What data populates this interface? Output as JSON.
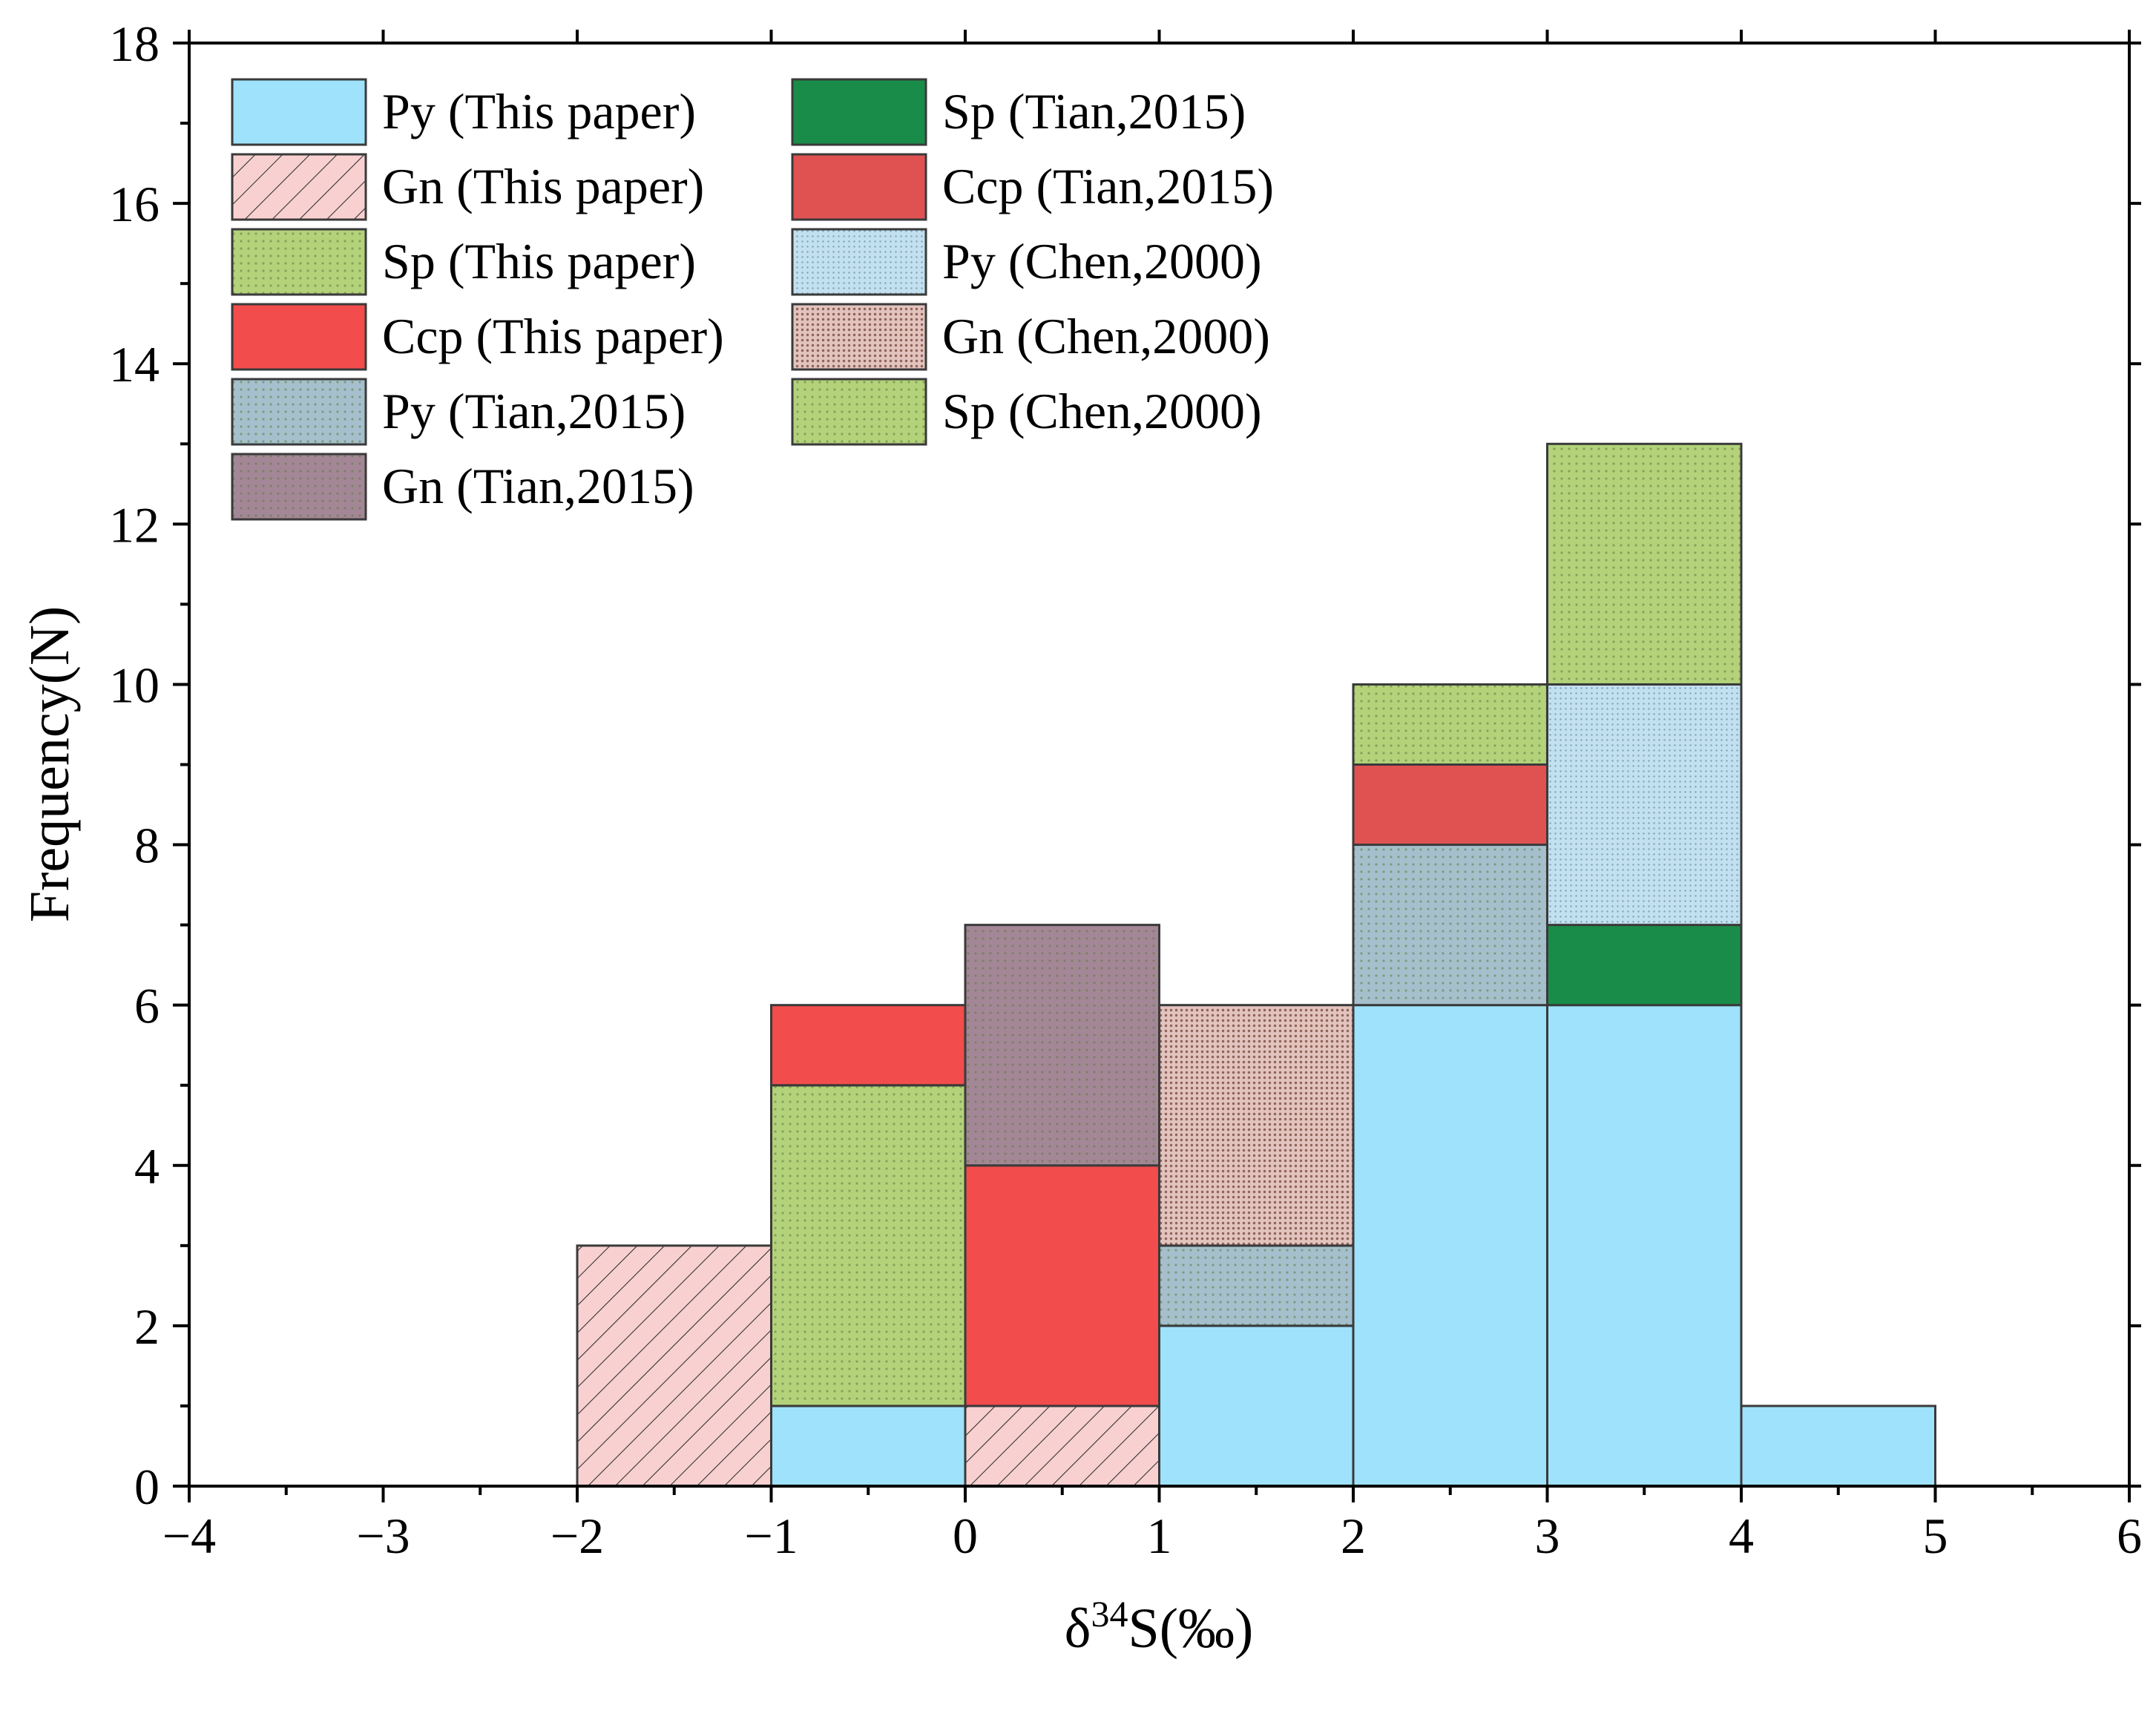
{
  "chart_data": {
    "type": "bar",
    "subtype": "stacked-histogram",
    "title": "",
    "xlabel": "δ34S(‰)",
    "xlabel_parts": {
      "base": "δ",
      "superscript": "34",
      "rest": "S(‰)"
    },
    "ylabel": "Frequency(N)",
    "xlim": [
      -4,
      6
    ],
    "ylim": [
      0,
      18
    ],
    "x_ticks": [
      "−4",
      "−3",
      "−2",
      "−1",
      "0",
      "1",
      "2",
      "3",
      "4",
      "5",
      "6"
    ],
    "y_ticks": [
      "0",
      "2",
      "4",
      "6",
      "8",
      "10",
      "12",
      "14",
      "16",
      "18"
    ],
    "grid": false,
    "legend_position": "top-left",
    "bins": [
      [
        -2,
        -1
      ],
      [
        -1,
        0
      ],
      [
        0,
        1
      ],
      [
        1,
        2
      ],
      [
        2,
        3
      ],
      [
        3,
        4
      ],
      [
        4,
        5
      ]
    ],
    "series": [
      {
        "name": "Py (This paper)",
        "color": "#9ee2fb",
        "pattern": "solid",
        "values": [
          0,
          1,
          0,
          2,
          6,
          6,
          1
        ]
      },
      {
        "name": "Gn (This paper)",
        "color": "#f9d0d0",
        "pattern": "hatch",
        "values": [
          3,
          0,
          1,
          0,
          0,
          0,
          0
        ]
      },
      {
        "name": "Sp (This paper)",
        "color": "#b3d27a",
        "pattern": "dots",
        "values": [
          0,
          4,
          0,
          0,
          0,
          0,
          0
        ]
      },
      {
        "name": "Ccp (This paper)",
        "color": "#f24c4c",
        "pattern": "solid",
        "values": [
          0,
          1,
          3,
          0,
          0,
          0,
          0
        ]
      },
      {
        "name": "Py (Tian,2015)",
        "color": "#a5c0cc",
        "pattern": "dots",
        "values": [
          0,
          0,
          0,
          1,
          2,
          0,
          0
        ]
      },
      {
        "name": "Gn (Tian,2015)",
        "color": "#a48796",
        "pattern": "dots",
        "values": [
          0,
          0,
          3,
          0,
          0,
          0,
          0
        ]
      },
      {
        "name": "Sp (Tian,2015)",
        "color": "#1a8c4a",
        "pattern": "solid",
        "values": [
          0,
          0,
          0,
          0,
          0,
          1,
          0
        ]
      },
      {
        "name": "Ccp (Tian,2015)",
        "color": "#e05252",
        "pattern": "solid",
        "values": [
          0,
          0,
          0,
          0,
          1,
          0,
          0
        ]
      },
      {
        "name": "Py (Chen,2000)",
        "color": "#c2e0ef",
        "pattern": "finedots",
        "values": [
          0,
          0,
          0,
          0,
          0,
          3,
          0
        ]
      },
      {
        "name": "Gn (Chen,2000)",
        "color": "#e2c3bd",
        "pattern": "finedots-dark",
        "values": [
          0,
          0,
          0,
          3,
          0,
          0,
          0
        ]
      },
      {
        "name": "Sp (Chen,2000)",
        "color": "#b3d27a",
        "pattern": "dots",
        "values": [
          0,
          0,
          0,
          0,
          1,
          3,
          0
        ]
      }
    ]
  }
}
